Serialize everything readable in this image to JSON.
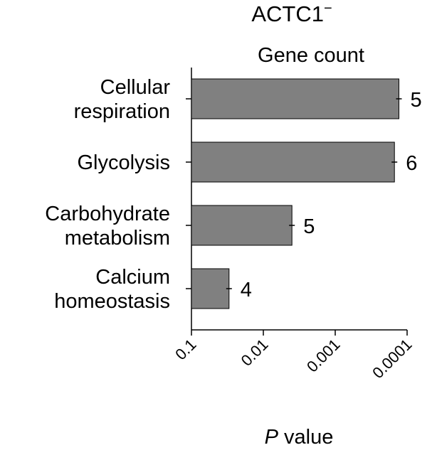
{
  "chart_data": {
    "type": "bar",
    "orientation": "horizontal",
    "title": "ACTC1",
    "title_superscript": "−",
    "annotation_header": "Gene count",
    "xlabel_italic": "P",
    "xlabel_rest": " value",
    "x_scale": "log (reversed)",
    "xlim": [
      0.1,
      0.0001
    ],
    "x_ticks": [
      0.1,
      0.01,
      0.001,
      0.0001
    ],
    "x_tick_labels": [
      "0.1",
      "0.01",
      "0.001",
      "0.0001"
    ],
    "categories": [
      [
        "Cellular",
        "respiration"
      ],
      [
        "Glycolysis"
      ],
      [
        "Carbohydrate",
        "metabolism"
      ],
      [
        "Calcium",
        "homeostasis"
      ]
    ],
    "values": [
      0.00013,
      0.00015,
      0.004,
      0.03
    ],
    "gene_counts": [
      "5",
      "6",
      "5",
      "4"
    ],
    "bar_color": "#808080",
    "grid": false,
    "legend": "none"
  }
}
